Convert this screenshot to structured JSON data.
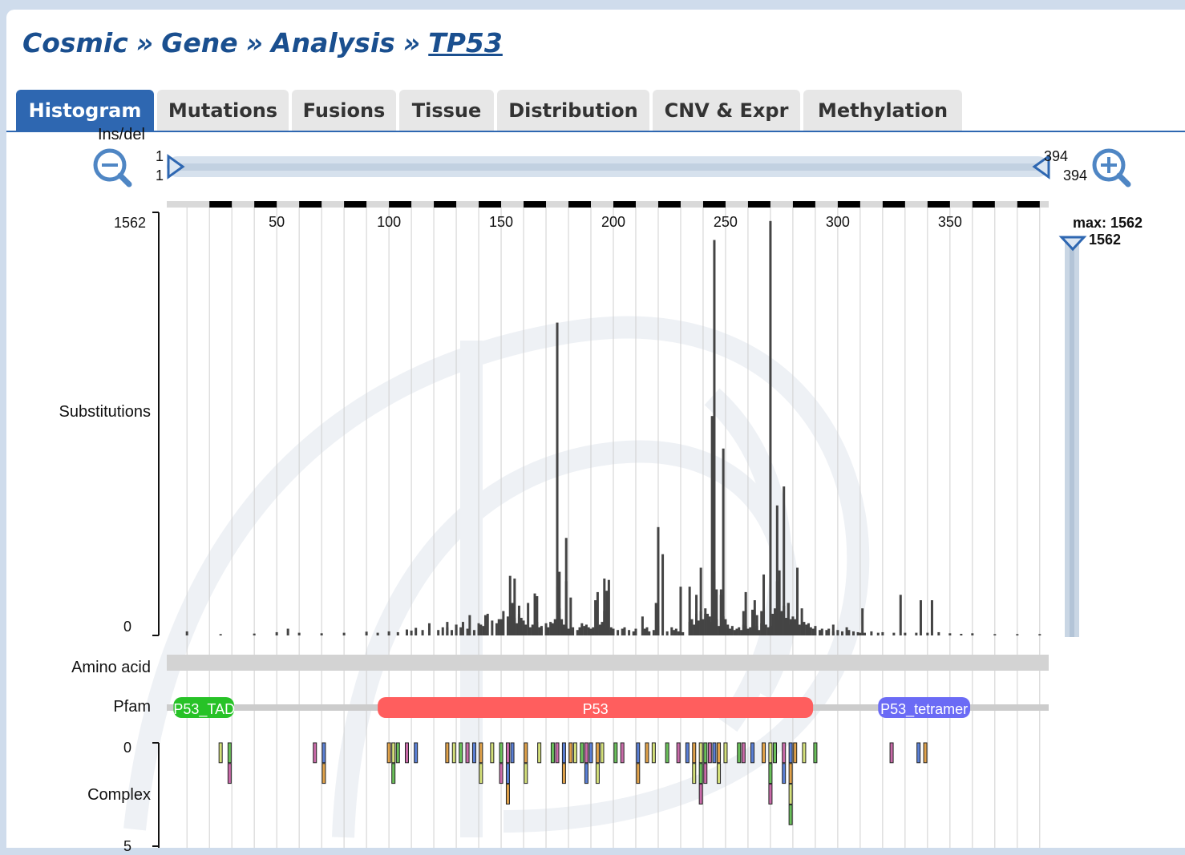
{
  "breadcrumb": {
    "items": [
      "Cosmic",
      "Gene",
      "Analysis"
    ],
    "separator": "»",
    "current": "TP53"
  },
  "tabs": [
    {
      "label": "Histogram",
      "active": true
    },
    {
      "label": "Mutations",
      "active": false
    },
    {
      "label": "Fusions",
      "active": false
    },
    {
      "label": "Tissue",
      "active": false
    },
    {
      "label": "Distribution",
      "active": false
    },
    {
      "label": "CNV & Expr",
      "active": false
    },
    {
      "label": "Methylation",
      "active": false
    }
  ],
  "zoom": {
    "zoom_out_icon": "zoom-out-icon",
    "zoom_in_icon": "zoom-in-icon",
    "range_start_top": "1",
    "range_start": "1",
    "range_end_top": "394",
    "range_end": "394"
  },
  "partial_track_label": "Ins/del",
  "y_max": {
    "label": "max: 1562",
    "value": "1562"
  },
  "colors": {
    "accent": "#2e67b1",
    "tad": "#27c227",
    "p53": "#ff5e5e",
    "tetramer": "#6b6bf5",
    "bar": "#444444",
    "slider": "#c9d6e4"
  },
  "chart_data": {
    "type": "bar",
    "xlabel": "",
    "ylabel": "Substitutions",
    "x_range": [
      1,
      394
    ],
    "xticks": [
      50,
      100,
      150,
      200,
      250,
      300,
      350
    ],
    "ylim": [
      0,
      1562
    ],
    "yticks": [
      "1562",
      "0"
    ],
    "bars": [
      [
        10,
        15
      ],
      [
        25,
        5
      ],
      [
        40,
        7
      ],
      [
        50,
        12
      ],
      [
        55,
        25
      ],
      [
        60,
        10
      ],
      [
        70,
        8
      ],
      [
        80,
        10
      ],
      [
        90,
        14
      ],
      [
        95,
        10
      ],
      [
        100,
        15
      ],
      [
        104,
        12
      ],
      [
        108,
        22
      ],
      [
        110,
        18
      ],
      [
        112,
        28
      ],
      [
        115,
        20
      ],
      [
        118,
        45
      ],
      [
        122,
        20
      ],
      [
        126,
        15
      ],
      [
        128,
        20
      ],
      [
        130,
        40
      ],
      [
        132,
        30
      ],
      [
        135,
        25
      ],
      [
        138,
        20
      ],
      [
        140,
        45
      ],
      [
        142,
        35
      ],
      [
        144,
        80
      ],
      [
        146,
        55
      ],
      [
        148,
        45
      ],
      [
        150,
        60
      ],
      [
        151,
        90
      ],
      [
        153,
        70
      ],
      [
        154,
        50
      ],
      [
        155,
        75
      ],
      [
        156,
        65
      ],
      [
        157,
        45
      ],
      [
        158,
        70
      ],
      [
        159,
        65
      ],
      [
        160,
        55
      ],
      [
        161,
        40
      ],
      [
        163,
        30
      ],
      [
        164,
        40
      ],
      [
        165,
        35
      ],
      [
        166,
        50
      ],
      [
        167,
        30
      ],
      [
        168,
        35
      ],
      [
        170,
        45
      ],
      [
        171,
        30
      ],
      [
        172,
        50
      ],
      [
        173,
        45
      ],
      [
        174,
        60
      ],
      [
        175,
        50
      ],
      [
        176,
        100
      ],
      [
        177,
        60
      ],
      [
        178,
        40
      ],
      [
        179,
        30
      ],
      [
        180,
        25
      ],
      [
        181,
        20
      ],
      [
        182,
        30
      ],
      [
        184,
        20
      ],
      [
        185,
        30
      ],
      [
        186,
        45
      ],
      [
        187,
        35
      ],
      [
        188,
        40
      ],
      [
        189,
        30
      ],
      [
        190,
        25
      ],
      [
        191,
        30
      ],
      [
        192,
        25
      ],
      [
        193,
        35
      ],
      [
        194,
        40
      ],
      [
        195,
        50
      ],
      [
        196,
        30
      ],
      [
        197,
        25
      ],
      [
        198,
        20
      ],
      [
        199,
        30
      ],
      [
        200,
        25
      ],
      [
        202,
        20
      ],
      [
        204,
        25
      ],
      [
        205,
        30
      ],
      [
        207,
        20
      ],
      [
        209,
        15
      ],
      [
        210,
        25
      ],
      [
        213,
        20
      ],
      [
        214,
        25
      ],
      [
        215,
        30
      ],
      [
        216,
        15
      ],
      [
        218,
        20
      ],
      [
        220,
        35
      ],
      [
        224,
        15
      ],
      [
        226,
        30
      ],
      [
        227,
        20
      ],
      [
        228,
        25
      ],
      [
        229,
        15
      ],
      [
        231,
        12
      ],
      [
        234,
        50
      ],
      [
        235,
        60
      ],
      [
        236,
        40
      ],
      [
        237,
        80
      ],
      [
        238,
        55
      ],
      [
        239,
        90
      ],
      [
        240,
        60
      ],
      [
        241,
        100
      ],
      [
        242,
        80
      ],
      [
        243,
        50
      ],
      [
        244,
        40
      ],
      [
        245,
        75
      ],
      [
        246,
        60
      ],
      [
        247,
        35
      ],
      [
        248,
        170
      ],
      [
        249,
        70
      ],
      [
        250,
        60
      ],
      [
        251,
        30
      ],
      [
        252,
        25
      ],
      [
        253,
        35
      ],
      [
        254,
        20
      ],
      [
        255,
        25
      ],
      [
        256,
        30
      ],
      [
        257,
        20
      ],
      [
        258,
        40
      ],
      [
        259,
        35
      ],
      [
        260,
        25
      ],
      [
        261,
        30
      ],
      [
        262,
        20
      ],
      [
        263,
        25
      ],
      [
        264,
        35
      ],
      [
        265,
        20
      ],
      [
        266,
        45
      ],
      [
        267,
        50
      ],
      [
        268,
        40
      ],
      [
        269,
        30
      ],
      [
        270,
        35
      ],
      [
        271,
        80
      ],
      [
        272,
        100
      ],
      [
        273,
        200
      ],
      [
        274,
        60
      ],
      [
        275,
        90
      ],
      [
        276,
        110
      ],
      [
        277,
        65
      ],
      [
        278,
        120
      ],
      [
        279,
        40
      ],
      [
        280,
        70
      ],
      [
        281,
        60
      ],
      [
        282,
        80
      ],
      [
        283,
        40
      ],
      [
        284,
        35
      ],
      [
        285,
        50
      ],
      [
        286,
        40
      ],
      [
        287,
        20
      ],
      [
        288,
        30
      ],
      [
        289,
        25
      ],
      [
        290,
        35
      ],
      [
        292,
        20
      ],
      [
        293,
        25
      ],
      [
        295,
        20
      ],
      [
        296,
        25
      ],
      [
        298,
        15
      ],
      [
        300,
        20
      ],
      [
        302,
        15
      ],
      [
        304,
        30
      ],
      [
        305,
        20
      ],
      [
        307,
        15
      ],
      [
        309,
        12
      ],
      [
        310,
        10
      ],
      [
        312,
        10
      ],
      [
        315,
        15
      ],
      [
        318,
        10
      ],
      [
        320,
        12
      ],
      [
        325,
        10
      ],
      [
        330,
        10
      ],
      [
        335,
        10
      ],
      [
        340,
        10
      ],
      [
        345,
        12
      ],
      [
        350,
        8
      ],
      [
        355,
        6
      ],
      [
        360,
        8
      ],
      [
        370,
        5
      ],
      [
        380,
        5
      ],
      [
        390,
        5
      ],
      [
        124,
        30
      ],
      [
        126,
        50
      ],
      [
        133,
        50
      ],
      [
        136,
        75
      ],
      [
        143,
        20
      ],
      [
        160,
        15
      ],
      [
        168,
        25
      ],
      [
        173,
        40
      ],
      [
        241,
        80
      ],
      [
        243,
        70
      ],
      [
        248,
        150
      ],
      [
        262,
        95
      ],
      [
        264,
        75
      ],
      [
        266,
        90
      ],
      [
        270,
        35
      ],
      [
        280,
        60
      ],
      [
        287,
        45
      ],
      [
        179,
        200
      ],
      [
        192,
        130
      ],
      [
        197,
        165
      ],
      [
        213,
        70
      ],
      [
        219,
        120
      ],
      [
        245,
        235
      ],
      [
        246,
        170
      ],
      [
        251,
        40
      ],
      [
        258,
        90
      ],
      [
        237,
        150
      ],
      [
        155,
        120
      ],
      [
        162,
        120
      ],
      [
        158,
        80
      ],
      [
        176,
        235
      ],
      [
        181,
        140
      ],
      [
        222,
        300
      ],
      [
        328,
        150
      ],
      [
        337,
        130
      ],
      [
        342,
        130
      ],
      [
        311,
        100
      ],
      [
        282,
        250
      ],
      [
        273,
        480
      ],
      [
        249,
        690
      ],
      [
        245,
        1460
      ],
      [
        248,
        150
      ],
      [
        175,
        1155
      ],
      [
        220,
        400
      ],
      [
        196,
        210
      ],
      [
        198,
        205
      ],
      [
        239,
        250
      ],
      [
        267,
        225
      ],
      [
        276,
        550
      ],
      [
        284,
        100
      ],
      [
        298,
        40
      ],
      [
        270,
        1530
      ],
      [
        274,
        240
      ],
      [
        278,
        120
      ],
      [
        126,
        30
      ],
      [
        130,
        40
      ],
      [
        141,
        40
      ],
      [
        193,
        160
      ],
      [
        230,
        180
      ],
      [
        234,
        180
      ],
      [
        244,
        810
      ],
      [
        179,
        360
      ],
      [
        158,
        110
      ],
      [
        143,
        75
      ],
      [
        149,
        60
      ],
      [
        154,
        220
      ],
      [
        156,
        210
      ],
      [
        165,
        155
      ],
      [
        166,
        145
      ],
      [
        175,
        180
      ],
      [
        196,
        90
      ],
      [
        259,
        160
      ],
      [
        263,
        130
      ],
      [
        279,
        60
      ]
    ]
  },
  "amino_acid_label": "Amino acid",
  "pfam": {
    "label": "Pfam",
    "domains": [
      {
        "name": "P53_TAD",
        "start": 4,
        "end": 31
      },
      {
        "name": "P53",
        "start": 95,
        "end": 289
      },
      {
        "name": "P53_tetramer",
        "start": 318,
        "end": 359
      }
    ]
  },
  "complex": {
    "label": "Complex",
    "yticks": [
      "0",
      "5"
    ],
    "ymax": 5,
    "bars": [
      [
        25,
        1
      ],
      [
        29,
        2
      ],
      [
        67,
        1
      ],
      [
        71,
        2
      ],
      [
        100,
        1
      ],
      [
        102,
        2
      ],
      [
        104,
        1
      ],
      [
        108,
        1
      ],
      [
        112,
        1
      ],
      [
        126,
        1
      ],
      [
        129,
        1
      ],
      [
        132,
        1
      ],
      [
        135,
        1
      ],
      [
        138,
        1
      ],
      [
        141,
        2
      ],
      [
        146,
        1
      ],
      [
        150,
        2
      ],
      [
        153,
        3
      ],
      [
        155,
        1
      ],
      [
        161,
        2
      ],
      [
        167,
        1
      ],
      [
        173,
        1
      ],
      [
        175,
        1
      ],
      [
        178,
        2
      ],
      [
        181,
        1
      ],
      [
        183,
        1
      ],
      [
        186,
        1
      ],
      [
        188,
        2
      ],
      [
        190,
        1
      ],
      [
        193,
        2
      ],
      [
        195,
        1
      ],
      [
        201,
        1
      ],
      [
        204,
        1
      ],
      [
        211,
        2
      ],
      [
        215,
        1
      ],
      [
        218,
        1
      ],
      [
        224,
        1
      ],
      [
        229,
        1
      ],
      [
        233,
        1
      ],
      [
        236,
        2
      ],
      [
        239,
        3
      ],
      [
        241,
        2
      ],
      [
        243,
        1
      ],
      [
        245,
        1
      ],
      [
        247,
        2
      ],
      [
        250,
        1
      ],
      [
        256,
        1
      ],
      [
        258,
        1
      ],
      [
        262,
        1
      ],
      [
        267,
        1
      ],
      [
        270,
        3
      ],
      [
        272,
        1
      ],
      [
        276,
        2
      ],
      [
        279,
        4
      ],
      [
        281,
        1
      ],
      [
        285,
        1
      ],
      [
        290,
        1
      ],
      [
        324,
        1
      ],
      [
        336,
        1
      ],
      [
        339,
        1
      ]
    ]
  }
}
